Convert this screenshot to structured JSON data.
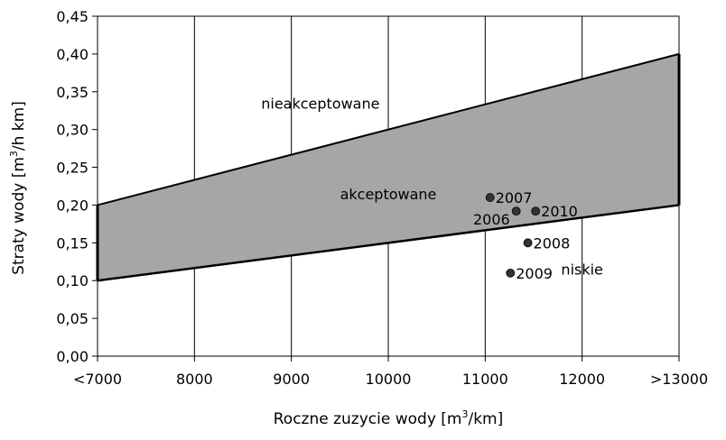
{
  "chart_data": {
    "type": "scatter",
    "xlabel": {
      "pre": "Roczne zuzycie wody [m",
      "sup": "3",
      "post": "/km]"
    },
    "ylabel": {
      "pre": "Straty wody [m",
      "sup": "3",
      "post": "/h km]"
    },
    "xlim": [
      7000,
      13000
    ],
    "ylim": [
      0,
      0.45
    ],
    "x_ticks": [
      7000,
      8000,
      9000,
      10000,
      11000,
      12000,
      13000
    ],
    "x_tick_labels": [
      "<7000",
      "8000",
      "9000",
      "10000",
      "11000",
      "12000",
      ">13000"
    ],
    "y_ticks": [
      0,
      0.05,
      0.1,
      0.15,
      0.2,
      0.25,
      0.3,
      0.35,
      0.4,
      0.45
    ],
    "y_tick_labels": [
      "0,00",
      "0,05",
      "0,10",
      "0,15",
      "0,20",
      "0,25",
      "0,30",
      "0,35",
      "0,40",
      "0,45"
    ],
    "grid": "vertical",
    "band": {
      "lower": [
        [
          7000,
          0.1
        ],
        [
          13000,
          0.2
        ]
      ],
      "upper": [
        [
          7000,
          0.2
        ],
        [
          13000,
          0.4
        ]
      ],
      "fill": "#a6a6a6"
    },
    "regions": [
      {
        "label": "nieakceptowane",
        "x": 9300,
        "y": 0.335
      },
      {
        "label": "akceptowane",
        "x": 10000,
        "y": 0.215
      },
      {
        "label": "niskie",
        "x": 12000,
        "y": 0.115
      }
    ],
    "points": [
      {
        "label": "2007",
        "x": 11050,
        "y": 0.21,
        "label_pos": "right"
      },
      {
        "label": "2006",
        "x": 11320,
        "y": 0.192,
        "label_pos": "left-below"
      },
      {
        "label": "2010",
        "x": 11520,
        "y": 0.192,
        "label_pos": "right"
      },
      {
        "label": "2008",
        "x": 11440,
        "y": 0.15,
        "label_pos": "right"
      },
      {
        "label": "2009",
        "x": 11260,
        "y": 0.11,
        "label_pos": "right"
      }
    ],
    "colors": {
      "point": "#333333",
      "axis": "#000000",
      "grid": "#000000"
    }
  }
}
